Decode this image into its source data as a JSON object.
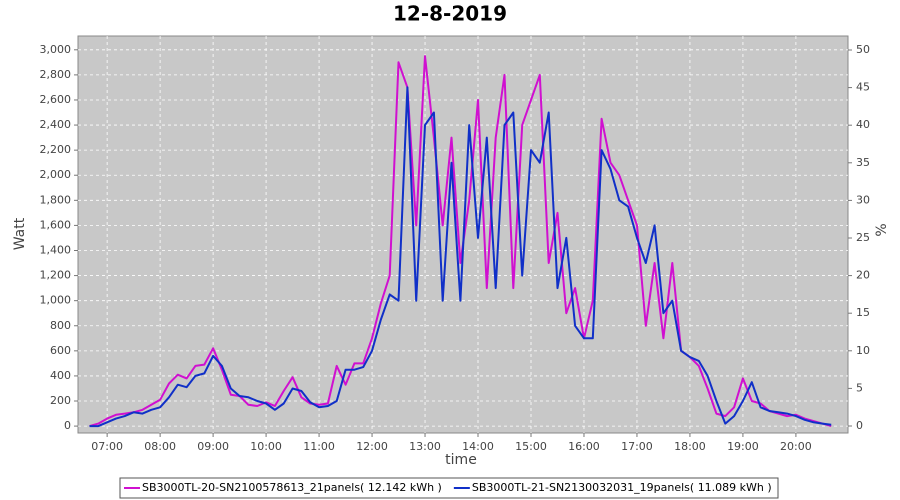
{
  "chart_data": {
    "type": "line",
    "title": "12-8-2019",
    "x_label": "time",
    "y_label": "Watt",
    "y2_label": "%",
    "x": [
      "06:40",
      "06:50",
      "07:00",
      "07:10",
      "07:20",
      "07:30",
      "07:40",
      "07:50",
      "08:00",
      "08:10",
      "08:20",
      "08:30",
      "08:40",
      "08:50",
      "09:00",
      "09:10",
      "09:20",
      "09:30",
      "09:40",
      "09:50",
      "10:00",
      "10:10",
      "10:20",
      "10:30",
      "10:40",
      "10:50",
      "11:00",
      "11:10",
      "11:20",
      "11:30",
      "11:40",
      "11:50",
      "12:00",
      "12:10",
      "12:20",
      "12:30",
      "12:40",
      "12:50",
      "13:00",
      "13:10",
      "13:20",
      "13:30",
      "13:40",
      "13:50",
      "14:00",
      "14:10",
      "14:20",
      "14:30",
      "14:40",
      "14:50",
      "15:00",
      "15:10",
      "15:20",
      "15:30",
      "15:40",
      "15:50",
      "16:00",
      "16:10",
      "16:20",
      "16:30",
      "16:40",
      "16:50",
      "17:00",
      "17:10",
      "17:20",
      "17:30",
      "17:40",
      "17:50",
      "18:00",
      "18:10",
      "18:20",
      "18:30",
      "18:40",
      "18:50",
      "19:00",
      "19:10",
      "19:20",
      "19:30",
      "19:40",
      "19:50",
      "20:00",
      "20:10",
      "20:20",
      "20:30",
      "20:40"
    ],
    "series": [
      {
        "name": "SB3000TL-20-SN2100578613_21panels( 12.142 kWh )",
        "color": "#d010d0",
        "values": [
          0,
          20,
          60,
          90,
          100,
          110,
          130,
          170,
          210,
          340,
          410,
          380,
          480,
          490,
          620,
          450,
          250,
          240,
          170,
          160,
          190,
          160,
          280,
          390,
          230,
          180,
          170,
          180,
          480,
          330,
          500,
          500,
          700,
          980,
          1200,
          2900,
          2700,
          1600,
          2950,
          2300,
          1600,
          2300,
          1300,
          1800,
          2600,
          1100,
          2300,
          2800,
          1100,
          2400,
          2600,
          2800,
          1300,
          1700,
          900,
          1100,
          700,
          1000,
          2450,
          2100,
          2000,
          1800,
          1600,
          800,
          1300,
          700,
          1300,
          600,
          550,
          480,
          300,
          100,
          80,
          150,
          380,
          200,
          180,
          120,
          100,
          80,
          90,
          60,
          40,
          20,
          0
        ]
      },
      {
        "name": "SB3000TL-21-SN2130032031_19panels( 11.089 kWh )",
        "color": "#1030c8",
        "values": [
          0,
          0,
          30,
          60,
          80,
          110,
          100,
          130,
          150,
          230,
          330,
          310,
          400,
          420,
          560,
          480,
          300,
          240,
          230,
          200,
          180,
          130,
          180,
          300,
          280,
          190,
          150,
          160,
          200,
          450,
          450,
          470,
          600,
          850,
          1050,
          1000,
          2700,
          1000,
          2400,
          2500,
          1000,
          2100,
          1000,
          2400,
          1500,
          2300,
          1100,
          2400,
          2500,
          1200,
          2200,
          2100,
          2500,
          1100,
          1500,
          800,
          700,
          700,
          2200,
          2050,
          1800,
          1750,
          1500,
          1300,
          1600,
          900,
          1000,
          600,
          550,
          520,
          400,
          200,
          20,
          80,
          200,
          350,
          150,
          120,
          110,
          100,
          80,
          50,
          30,
          20,
          10
        ]
      }
    ],
    "xlim": [
      "06:27",
      "20:59"
    ],
    "xticks": [
      "07:00",
      "08:00",
      "09:00",
      "10:00",
      "11:00",
      "12:00",
      "13:00",
      "14:00",
      "15:00",
      "16:00",
      "17:00",
      "18:00",
      "19:00",
      "20:00"
    ],
    "ylim": [
      -55,
      3110
    ],
    "yticks": [
      0,
      200,
      400,
      600,
      800,
      {
        "value": 1000,
        "label": "1,000"
      },
      {
        "value": 1200,
        "label": "1,200"
      },
      {
        "value": 1400,
        "label": "1,400"
      },
      {
        "value": 1600,
        "label": "1,600"
      },
      {
        "value": 1800,
        "label": "1,800"
      },
      {
        "value": 2000,
        "label": "2,000"
      },
      {
        "value": 2200,
        "label": "2,200"
      },
      {
        "value": 2400,
        "label": "2,400"
      },
      {
        "value": 2600,
        "label": "2,600"
      },
      {
        "value": 2800,
        "label": "2,800"
      },
      {
        "value": 3000,
        "label": "3,000"
      }
    ],
    "y2lim": [
      -0.93,
      51.86
    ],
    "y2ticks": [
      0,
      5,
      10,
      15,
      20,
      25,
      30,
      35,
      40,
      45,
      50
    ],
    "grid": true,
    "legend": "bottom"
  }
}
